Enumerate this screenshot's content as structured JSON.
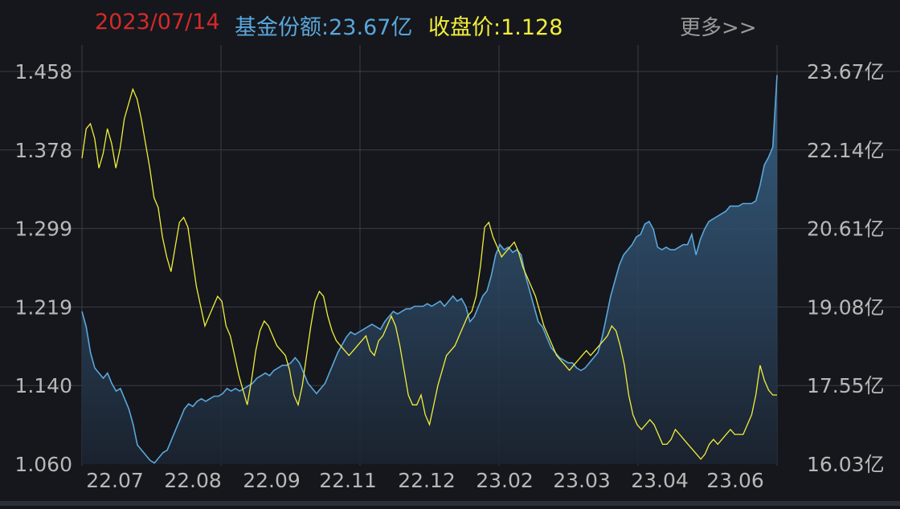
{
  "header": {
    "date": "2023/07/14",
    "fund_share": "基金份额:23.67亿",
    "close_price": "收盘价:1.128",
    "more": "更多>>"
  },
  "colors": {
    "background": "#15171c",
    "grid": "#3a3d44",
    "date_text": "#d42a2a",
    "fund_share_line": "#5aa7dc",
    "close_price_line": "#f2ee3a",
    "axis_text": "#b8b8b8",
    "more_text": "#9a9a9a"
  },
  "chart_data": {
    "type": "line",
    "x_ticks": [
      "22.07",
      "22.08",
      "22.09",
      "22.11",
      "22.12",
      "23.02",
      "23.03",
      "23.04",
      "23.06"
    ],
    "y_left": {
      "ticks": [
        "1.458",
        "1.378",
        "1.299",
        "1.219",
        "1.140",
        "1.060"
      ],
      "range": [
        1.06,
        1.458
      ]
    },
    "y_right": {
      "ticks": [
        "23.67亿",
        "22.14亿",
        "20.61亿",
        "19.08亿",
        "17.55亿",
        "16.03亿"
      ],
      "range": [
        16.03,
        23.67
      ]
    },
    "grid": true,
    "series": [
      {
        "key": "fund_share",
        "axis": "right",
        "style": "area",
        "values": [
          19.0,
          18.7,
          18.2,
          17.9,
          17.8,
          17.7,
          17.8,
          17.6,
          17.45,
          17.5,
          17.3,
          17.1,
          16.8,
          16.4,
          16.3,
          16.2,
          16.1,
          16.05,
          16.15,
          16.25,
          16.3,
          16.5,
          16.7,
          16.9,
          17.1,
          17.2,
          17.15,
          17.25,
          17.3,
          17.25,
          17.3,
          17.35,
          17.35,
          17.4,
          17.5,
          17.45,
          17.5,
          17.45,
          17.5,
          17.55,
          17.6,
          17.7,
          17.75,
          17.8,
          17.75,
          17.85,
          17.9,
          17.95,
          17.95,
          18.0,
          18.1,
          18.0,
          17.8,
          17.6,
          17.5,
          17.4,
          17.5,
          17.6,
          17.8,
          18.0,
          18.2,
          18.35,
          18.5,
          18.6,
          18.55,
          18.6,
          18.65,
          18.7,
          18.75,
          18.7,
          18.65,
          18.8,
          18.9,
          19.0,
          18.95,
          19.0,
          19.05,
          19.05,
          19.1,
          19.1,
          19.1,
          19.15,
          19.1,
          19.15,
          19.2,
          19.1,
          19.2,
          19.3,
          19.2,
          19.25,
          19.1,
          18.8,
          18.9,
          19.1,
          19.3,
          19.4,
          19.7,
          20.1,
          20.3,
          20.2,
          20.25,
          20.15,
          20.2,
          20.1,
          19.7,
          19.4,
          19.1,
          18.8,
          18.7,
          18.5,
          18.3,
          18.2,
          18.1,
          18.05,
          18.0,
          18.0,
          17.9,
          17.85,
          17.9,
          18.0,
          18.1,
          18.2,
          18.5,
          18.9,
          19.3,
          19.6,
          19.9,
          20.1,
          20.2,
          20.3,
          20.45,
          20.5,
          20.7,
          20.75,
          20.6,
          20.25,
          20.2,
          20.25,
          20.2,
          20.2,
          20.25,
          20.3,
          20.3,
          20.5,
          20.1,
          20.4,
          20.6,
          20.75,
          20.8,
          20.85,
          20.9,
          20.95,
          21.05,
          21.05,
          21.05,
          21.1,
          21.1,
          21.1,
          21.15,
          21.45,
          21.85,
          22.0,
          22.2,
          23.6
        ]
      },
      {
        "key": "close_price",
        "axis": "left",
        "style": "line",
        "values": [
          1.37,
          1.4,
          1.405,
          1.39,
          1.36,
          1.375,
          1.4,
          1.385,
          1.36,
          1.38,
          1.41,
          1.425,
          1.44,
          1.43,
          1.41,
          1.385,
          1.36,
          1.33,
          1.32,
          1.29,
          1.27,
          1.255,
          1.28,
          1.305,
          1.31,
          1.3,
          1.27,
          1.24,
          1.22,
          1.2,
          1.21,
          1.22,
          1.23,
          1.225,
          1.2,
          1.19,
          1.17,
          1.15,
          1.135,
          1.12,
          1.145,
          1.175,
          1.195,
          1.205,
          1.2,
          1.19,
          1.18,
          1.175,
          1.17,
          1.155,
          1.13,
          1.12,
          1.14,
          1.17,
          1.2,
          1.225,
          1.235,
          1.23,
          1.21,
          1.195,
          1.185,
          1.18,
          1.175,
          1.17,
          1.175,
          1.18,
          1.185,
          1.19,
          1.175,
          1.17,
          1.185,
          1.19,
          1.2,
          1.21,
          1.2,
          1.18,
          1.155,
          1.13,
          1.12,
          1.12,
          1.13,
          1.11,
          1.1,
          1.12,
          1.14,
          1.155,
          1.17,
          1.175,
          1.18,
          1.19,
          1.2,
          1.21,
          1.215,
          1.23,
          1.26,
          1.3,
          1.305,
          1.29,
          1.28,
          1.27,
          1.275,
          1.28,
          1.285,
          1.275,
          1.26,
          1.25,
          1.24,
          1.23,
          1.215,
          1.2,
          1.19,
          1.18,
          1.17,
          1.165,
          1.16,
          1.155,
          1.16,
          1.165,
          1.17,
          1.175,
          1.17,
          1.175,
          1.18,
          1.185,
          1.19,
          1.2,
          1.195,
          1.18,
          1.16,
          1.13,
          1.11,
          1.1,
          1.095,
          1.1,
          1.105,
          1.1,
          1.09,
          1.08,
          1.08,
          1.085,
          1.095,
          1.09,
          1.085,
          1.08,
          1.075,
          1.07,
          1.065,
          1.07,
          1.08,
          1.085,
          1.08,
          1.085,
          1.09,
          1.095,
          1.09,
          1.09,
          1.09,
          1.1,
          1.11,
          1.13,
          1.16,
          1.145,
          1.135,
          1.13,
          1.13
        ]
      }
    ]
  }
}
